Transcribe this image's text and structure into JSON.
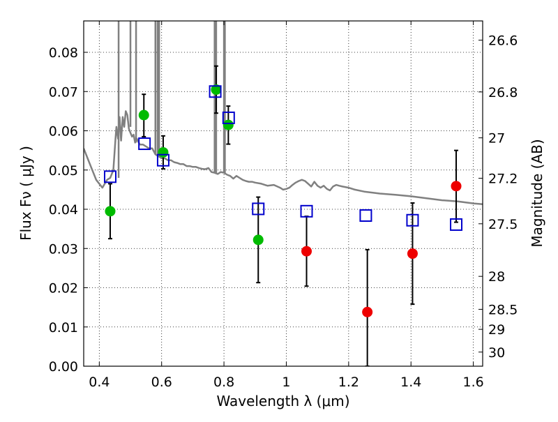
{
  "chart_data": {
    "type": "scatter",
    "title": "",
    "xlabel": "Wavelength  λ (μm)",
    "ylabel": "Flux  Fν  ( μJy )",
    "y2label": "Magnitude (AB)",
    "xlim": [
      0.35,
      1.63
    ],
    "ylim": [
      0.0,
      0.088
    ],
    "grid": true,
    "x_ticks": [
      0.4,
      0.6,
      0.8,
      1.0,
      1.2,
      1.4,
      1.6
    ],
    "x_tick_labels": [
      "0.4",
      "0.6",
      "0.8",
      "1",
      "1.2",
      "1.4",
      "1.6"
    ],
    "y_ticks": [
      0.0,
      0.01,
      0.02,
      0.03,
      0.04,
      0.05,
      0.06,
      0.07,
      0.08
    ],
    "y_tick_labels": [
      "0.00",
      "0.01",
      "0.02",
      "0.03",
      "0.04",
      "0.05",
      "0.06",
      "0.07",
      "0.08"
    ],
    "y2_ticks": [
      {
        "label": "26.6",
        "flux": 0.0831
      },
      {
        "label": "26.8",
        "flux": 0.0699
      },
      {
        "label": "27",
        "flux": 0.0582
      },
      {
        "label": "27.2",
        "flux": 0.0479
      },
      {
        "label": "27.5",
        "flux": 0.0363
      },
      {
        "label": "28",
        "flux": 0.0229
      },
      {
        "label": "28.5",
        "flux": 0.0145
      },
      {
        "label": "29",
        "flux": 0.0094
      },
      {
        "label": "30",
        "flux": 0.0036
      }
    ],
    "series": [
      {
        "name": "Detections (green)",
        "color": "#00bb00",
        "marker": "circle",
        "points": [
          {
            "x": 0.435,
            "y": 0.0395,
            "ylo": 0.0325,
            "yhi": 0.0465
          },
          {
            "x": 0.543,
            "y": 0.064,
            "ylo": 0.0585,
            "yhi": 0.0693
          },
          {
            "x": 0.605,
            "y": 0.0545,
            "ylo": 0.0503,
            "yhi": 0.0587
          },
          {
            "x": 0.775,
            "y": 0.0705,
            "ylo": 0.0645,
            "yhi": 0.0765
          },
          {
            "x": 0.814,
            "y": 0.0615,
            "ylo": 0.0566,
            "yhi": 0.0663
          },
          {
            "x": 0.91,
            "y": 0.0322,
            "ylo": 0.0213,
            "yhi": 0.0431
          }
        ]
      },
      {
        "name": "Detections (red)",
        "color": "#ee0000",
        "marker": "circle",
        "points": [
          {
            "x": 1.065,
            "y": 0.0293,
            "ylo": 0.0204,
            "yhi": 0.0382
          },
          {
            "x": 1.26,
            "y": 0.0138,
            "ylo": 0.0,
            "yhi": 0.0297
          },
          {
            "x": 1.405,
            "y": 0.0287,
            "ylo": 0.0158,
            "yhi": 0.0416
          },
          {
            "x": 1.545,
            "y": 0.0459,
            "ylo": 0.0367,
            "yhi": 0.055
          }
        ]
      },
      {
        "name": "Model photometry",
        "color": "#0000cc",
        "marker": "square",
        "points": [
          {
            "x": 0.435,
            "y": 0.0483
          },
          {
            "x": 0.545,
            "y": 0.0567
          },
          {
            "x": 0.605,
            "y": 0.0525
          },
          {
            "x": 0.772,
            "y": 0.07
          },
          {
            "x": 0.815,
            "y": 0.0633
          },
          {
            "x": 0.91,
            "y": 0.0401
          },
          {
            "x": 1.065,
            "y": 0.0395
          },
          {
            "x": 1.255,
            "y": 0.0384
          },
          {
            "x": 1.405,
            "y": 0.0372
          },
          {
            "x": 1.545,
            "y": 0.0361
          }
        ]
      }
    ],
    "spectrum": {
      "name": "Model spectrum",
      "color": "#808080",
      "x": [
        0.35,
        0.37,
        0.39,
        0.41,
        0.425,
        0.435,
        0.445,
        0.452,
        0.455,
        0.46,
        0.465,
        0.47,
        0.475,
        0.48,
        0.485,
        0.49,
        0.495,
        0.5,
        0.505,
        0.51,
        0.515,
        0.52,
        0.53,
        0.54,
        0.55,
        0.56,
        0.57,
        0.58,
        0.59,
        0.6,
        0.61,
        0.62,
        0.63,
        0.64,
        0.65,
        0.66,
        0.67,
        0.68,
        0.69,
        0.7,
        0.71,
        0.72,
        0.73,
        0.74,
        0.75,
        0.76,
        0.77,
        0.78,
        0.79,
        0.8,
        0.81,
        0.82,
        0.83,
        0.84,
        0.85,
        0.86,
        0.87,
        0.88,
        0.89,
        0.9,
        0.92,
        0.94,
        0.96,
        0.98,
        0.99,
        1.0,
        1.01,
        1.02,
        1.03,
        1.04,
        1.05,
        1.06,
        1.07,
        1.08,
        1.09,
        1.1,
        1.11,
        1.12,
        1.13,
        1.14,
        1.15,
        1.16,
        1.17,
        1.18,
        1.2,
        1.22,
        1.25,
        1.28,
        1.3,
        1.35,
        1.4,
        1.45,
        1.5,
        1.55,
        1.6,
        1.63
      ],
      "y": [
        0.0555,
        0.0515,
        0.0475,
        0.0455,
        0.0475,
        0.048,
        0.05,
        0.058,
        0.061,
        0.058,
        0.0635,
        0.0575,
        0.0635,
        0.061,
        0.065,
        0.064,
        0.0605,
        0.0595,
        0.0585,
        0.059,
        0.057,
        0.058,
        0.0565,
        0.0565,
        0.056,
        0.0555,
        0.0555,
        0.054,
        0.0535,
        0.053,
        0.053,
        0.0525,
        0.0525,
        0.052,
        0.0518,
        0.0515,
        0.0515,
        0.051,
        0.051,
        0.0508,
        0.0508,
        0.0505,
        0.0503,
        0.0502,
        0.0505,
        0.0495,
        0.0493,
        0.049,
        0.0495,
        0.0493,
        0.0488,
        0.0485,
        0.0478,
        0.0485,
        0.048,
        0.0475,
        0.0472,
        0.047,
        0.047,
        0.0468,
        0.0465,
        0.046,
        0.0462,
        0.0455,
        0.045,
        0.0452,
        0.0455,
        0.0462,
        0.0468,
        0.0472,
        0.0475,
        0.0472,
        0.0465,
        0.0458,
        0.047,
        0.046,
        0.0455,
        0.046,
        0.0452,
        0.0448,
        0.0458,
        0.0462,
        0.046,
        0.0458,
        0.0455,
        0.045,
        0.0445,
        0.0442,
        0.044,
        0.0437,
        0.0433,
        0.0428,
        0.0423,
        0.042,
        0.0415,
        0.0413
      ],
      "emission_lines": [
        {
          "x": 0.462,
          "ylo": 0.048,
          "yhi": 0.088
        },
        {
          "x": 0.5,
          "ylo": 0.061,
          "yhi": 0.088
        },
        {
          "x": 0.518,
          "ylo": 0.057,
          "yhi": 0.088
        },
        {
          "x": 0.58,
          "ylo": 0.054,
          "yhi": 0.088
        },
        {
          "x": 0.587,
          "ylo": 0.0535,
          "yhi": 0.088
        },
        {
          "x": 0.592,
          "ylo": 0.0535,
          "yhi": 0.088
        },
        {
          "x": 0.77,
          "ylo": 0.0495,
          "yhi": 0.088
        },
        {
          "x": 0.775,
          "ylo": 0.049,
          "yhi": 0.088
        },
        {
          "x": 0.8,
          "ylo": 0.0493,
          "yhi": 0.088
        },
        {
          "x": 0.803,
          "ylo": 0.049,
          "yhi": 0.088
        }
      ]
    }
  }
}
